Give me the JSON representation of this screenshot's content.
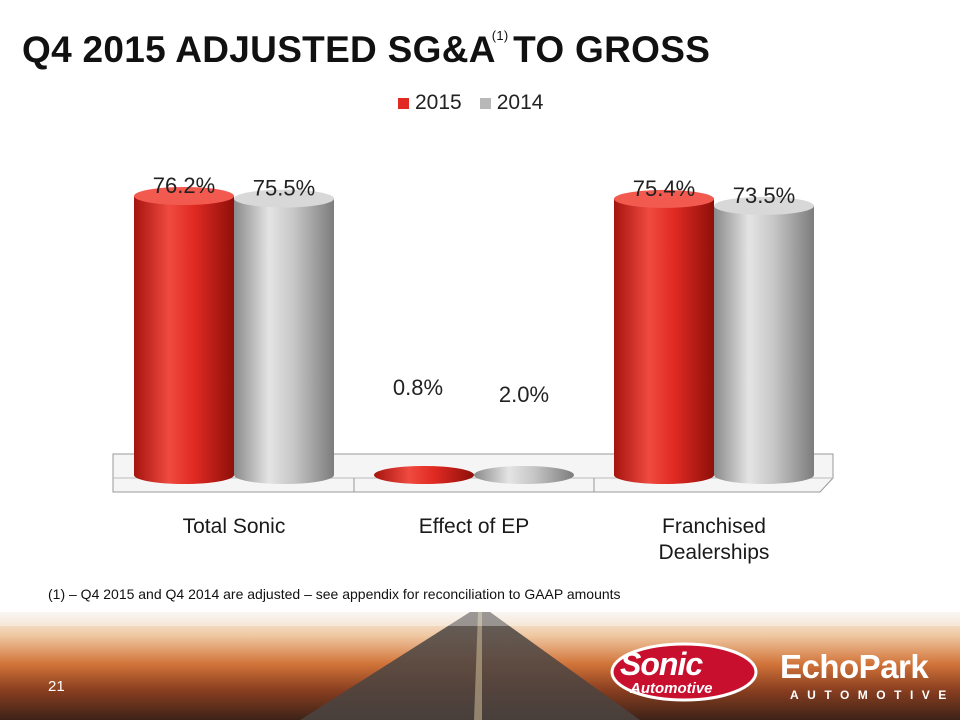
{
  "slide": {
    "title": "Q4 2015 ADJUSTED SG&A",
    "title_sup": "(1)",
    "title_end": "TO GROSS",
    "footnote": "(1) – Q4 2015 and Q4 2014 are adjusted – see appendix for reconciliation to GAAP amounts",
    "page_number": "21"
  },
  "logos": {
    "sonic_name": "Sonic",
    "sonic_sub": "Automotive",
    "echopark_name": "EchoPark",
    "echopark_sub": "AUTOMOTIVE"
  },
  "colors": {
    "series_2015": "#e02a22",
    "series_2014": "#b8b8b8"
  },
  "chart_data": {
    "type": "bar",
    "title": "",
    "categories": [
      "Total Sonic",
      "Effect of EP",
      "Franchised Dealerships"
    ],
    "category_lines": [
      [
        "Total Sonic"
      ],
      [
        "Effect of EP"
      ],
      [
        "Franchised",
        "Dealerships"
      ]
    ],
    "series": [
      {
        "name": "2015",
        "values": [
          76.2,
          0.8,
          75.4
        ],
        "labels": [
          "76.2%",
          "0.8%",
          "75.4%"
        ]
      },
      {
        "name": "2014",
        "values": [
          75.5,
          2.0,
          73.5
        ],
        "labels": [
          "75.5%",
          "2.0%",
          "73.5%"
        ]
      }
    ],
    "legend_position": "top-center",
    "xlabel": "",
    "ylabel": "",
    "ylim": [
      0,
      80
    ],
    "grid": false
  }
}
